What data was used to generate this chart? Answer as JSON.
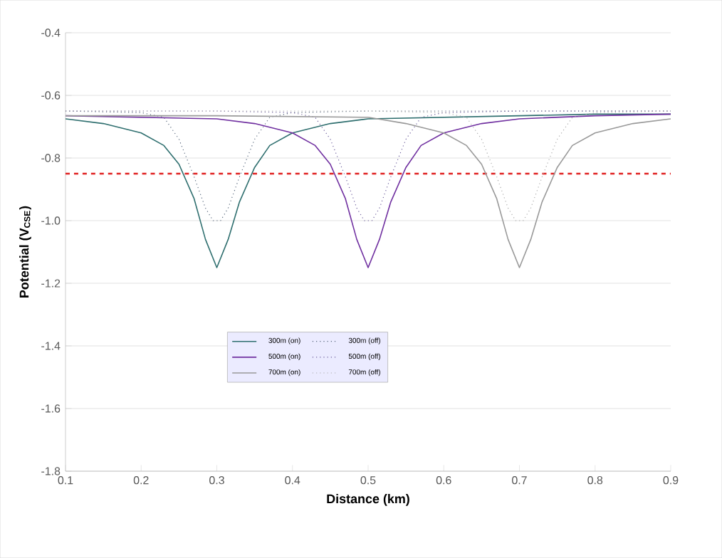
{
  "chart_data": {
    "type": "line",
    "xlabel": "Distance (km)",
    "ylabel": "Potential (V$_{CSE}$)",
    "xlim": [
      0.1,
      0.9
    ],
    "xticks": [
      0.1,
      0.2,
      0.3,
      0.4,
      0.5,
      0.6,
      0.7,
      0.8,
      0.9
    ],
    "ylim": [
      -1.8,
      -0.4
    ],
    "yticks": [
      -1.8,
      -1.6,
      -1.4,
      -1.2,
      {
        "value": -1.0,
        "label": "-1.0"
      },
      -0.8,
      -0.6,
      -0.4
    ],
    "grid": "y",
    "legend": "bottom",
    "marker": "none",
    "ref_lines": [
      {
        "axis": "y",
        "value": -0.85,
        "color": "#e02020",
        "line_style": "dashed"
      }
    ],
    "series": [
      {
        "name": "300m (on)",
        "color": "#2f6f6f",
        "line_style": "solid",
        "x": [
          0.1,
          0.15,
          0.2,
          0.23,
          0.25,
          0.27,
          0.285,
          0.3,
          0.315,
          0.33,
          0.35,
          0.37,
          0.4,
          0.45,
          0.5,
          0.6,
          0.7,
          0.8,
          0.9
        ],
        "values": [
          -0.675,
          -0.69,
          -0.72,
          -0.76,
          -0.82,
          -0.93,
          -1.06,
          -1.15,
          -1.06,
          -0.94,
          -0.83,
          -0.76,
          -0.72,
          -0.69,
          -0.675,
          -0.67,
          -0.665,
          -0.66,
          -0.66
        ]
      },
      {
        "name": "300m (off)",
        "color": "#55657a",
        "line_style": "dotted",
        "x": [
          0.1,
          0.2,
          0.23,
          0.25,
          0.27,
          0.285,
          0.295,
          0.305,
          0.315,
          0.33,
          0.35,
          0.37,
          0.4,
          0.5,
          0.7,
          0.9
        ],
        "values": [
          -0.65,
          -0.655,
          -0.67,
          -0.74,
          -0.86,
          -0.96,
          -1.0,
          -1.0,
          -0.96,
          -0.86,
          -0.74,
          -0.67,
          -0.655,
          -0.65,
          -0.65,
          -0.65
        ]
      },
      {
        "name": "500m (on)",
        "color": "#7030a0",
        "line_style": "solid",
        "x": [
          0.1,
          0.2,
          0.3,
          0.35,
          0.4,
          0.43,
          0.45,
          0.47,
          0.485,
          0.5,
          0.515,
          0.53,
          0.55,
          0.57,
          0.6,
          0.65,
          0.7,
          0.8,
          0.9
        ],
        "values": [
          -0.665,
          -0.67,
          -0.675,
          -0.69,
          -0.72,
          -0.76,
          -0.82,
          -0.93,
          -1.06,
          -1.15,
          -1.06,
          -0.94,
          -0.83,
          -0.76,
          -0.72,
          -0.69,
          -0.675,
          -0.665,
          -0.66
        ]
      },
      {
        "name": "500m (off)",
        "color": "#6a5a9a",
        "line_style": "dotted",
        "x": [
          0.1,
          0.3,
          0.4,
          0.43,
          0.45,
          0.47,
          0.485,
          0.495,
          0.505,
          0.515,
          0.53,
          0.55,
          0.57,
          0.6,
          0.7,
          0.9
        ],
        "values": [
          -0.65,
          -0.65,
          -0.655,
          -0.67,
          -0.74,
          -0.86,
          -0.96,
          -1.0,
          -1.0,
          -0.96,
          -0.86,
          -0.74,
          -0.67,
          -0.655,
          -0.65,
          -0.65
        ]
      },
      {
        "name": "700m (on)",
        "color": "#999999",
        "line_style": "solid",
        "x": [
          0.1,
          0.3,
          0.5,
          0.55,
          0.6,
          0.63,
          0.65,
          0.67,
          0.685,
          0.7,
          0.715,
          0.73,
          0.75,
          0.77,
          0.8,
          0.85,
          0.9
        ],
        "values": [
          -0.665,
          -0.665,
          -0.67,
          -0.69,
          -0.72,
          -0.76,
          -0.82,
          -0.93,
          -1.06,
          -1.15,
          -1.06,
          -0.94,
          -0.83,
          -0.76,
          -0.72,
          -0.69,
          -0.675
        ]
      },
      {
        "name": "700m (off)",
        "color": "#aaaaaa",
        "line_style": "dotted",
        "x": [
          0.1,
          0.3,
          0.5,
          0.6,
          0.63,
          0.65,
          0.67,
          0.685,
          0.695,
          0.705,
          0.715,
          0.73,
          0.75,
          0.77,
          0.8,
          0.9
        ],
        "values": [
          -0.65,
          -0.65,
          -0.65,
          -0.655,
          -0.67,
          -0.74,
          -0.86,
          -0.96,
          -1.0,
          -1.0,
          -0.96,
          -0.86,
          -0.74,
          -0.67,
          -0.655,
          -0.65
        ]
      }
    ]
  }
}
